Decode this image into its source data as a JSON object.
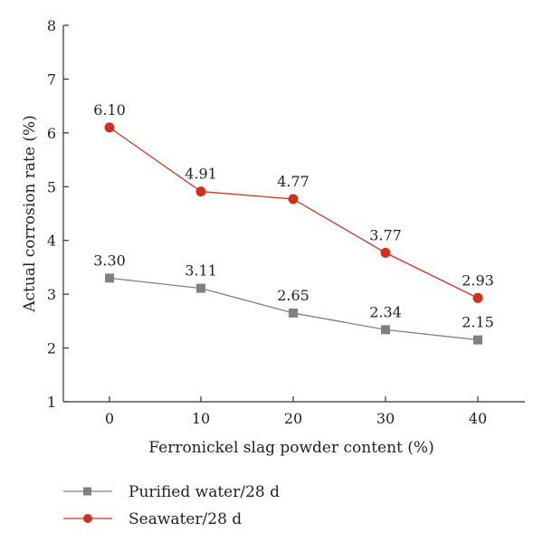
{
  "chart_data": {
    "type": "line",
    "title": "",
    "xlabel": "Ferronickel slag powder content (%)",
    "ylabel": "Actual corrosion rate (%)",
    "x": [
      0,
      10,
      20,
      30,
      40
    ],
    "x_ticks": [
      "0",
      "10",
      "20",
      "30",
      "40"
    ],
    "ylim": [
      1,
      8
    ],
    "y_ticks": [
      "1",
      "2",
      "3",
      "4",
      "5",
      "6",
      "7",
      "8"
    ],
    "grid": false,
    "legend_position": "bottom-left",
    "series": [
      {
        "name": "Purified water/28 d",
        "values": [
          3.3,
          3.11,
          2.65,
          2.34,
          2.15
        ],
        "labels": [
          "3.30",
          "3.11",
          "2.65",
          "2.34",
          "2.15"
        ],
        "color": "#808080",
        "marker": "square"
      },
      {
        "name": "Seawater/28 d",
        "values": [
          6.1,
          4.91,
          4.77,
          3.77,
          2.93
        ],
        "labels": [
          "6.10",
          "4.91",
          "4.77",
          "3.77",
          "2.93"
        ],
        "color": "#d03020",
        "marker": "circle"
      }
    ]
  }
}
